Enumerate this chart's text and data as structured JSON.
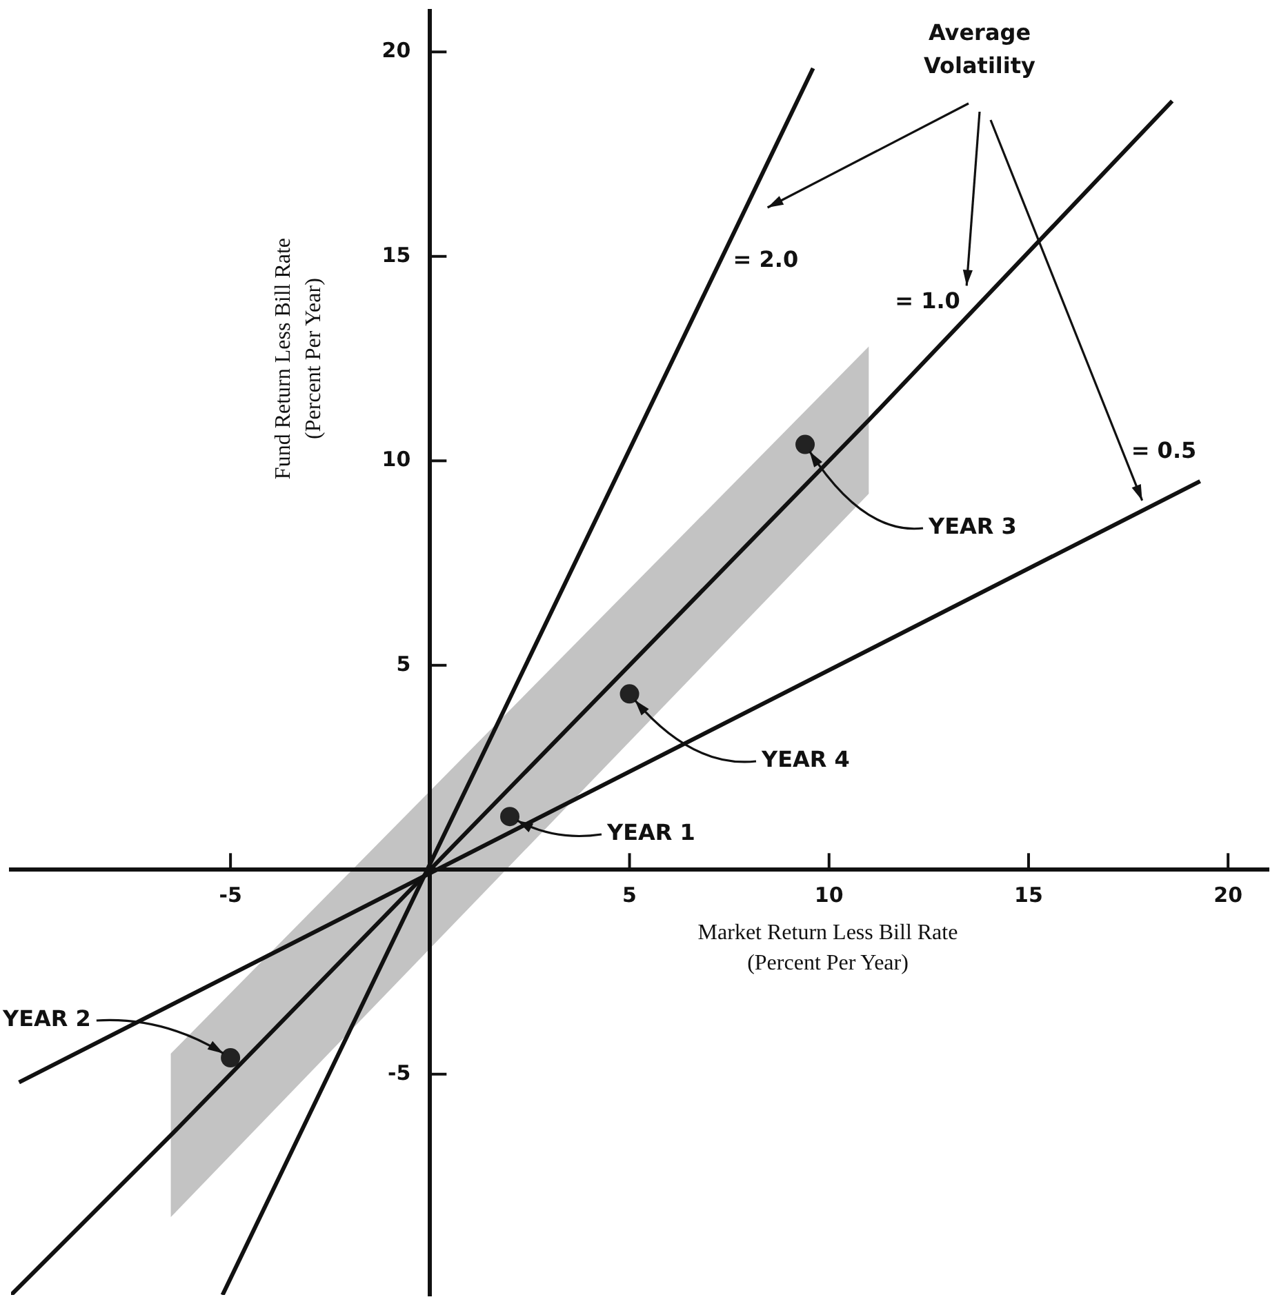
{
  "chart_data": {
    "type": "scatter",
    "xlabel": "Market Return Less Bill Rate\n(Percent Per Year)",
    "ylabel": "Fund Return Less Bill Rate\n(Percent Per Year)",
    "xlim": [
      -10.5,
      21
    ],
    "ylim": [
      -10.4,
      21
    ],
    "xticks": [
      -5,
      5,
      10,
      15,
      20
    ],
    "yticks": [
      -5,
      5,
      10,
      15,
      20
    ],
    "grid": false,
    "marker": "circle",
    "series": [
      {
        "name": "= 2.0",
        "type": "line",
        "marker": "none",
        "color": "#111111",
        "x": [
          -5.2,
          9.6
        ],
        "values": [
          -10.4,
          19.6
        ]
      },
      {
        "name": "= 1.0",
        "type": "line",
        "marker": "none",
        "color": "#111111",
        "x": [
          -10.5,
          -6.5,
          11,
          18.6
        ],
        "values": [
          -10.4,
          -6.5,
          11,
          18.8
        ],
        "lower": [
          null,
          -8.5,
          9.2,
          null
        ],
        "upper": [
          null,
          -4.5,
          12.8,
          null
        ]
      },
      {
        "name": "= 0.5",
        "type": "line",
        "marker": "none",
        "color": "#111111",
        "x": [
          -10.3,
          19.3
        ],
        "values": [
          -5.2,
          9.5
        ]
      },
      {
        "color": "#222222",
        "x": [
          2.0,
          -5.0,
          9.4,
          5.0
        ],
        "values": [
          1.3,
          -4.6,
          10.4,
          4.3
        ]
      }
    ],
    "annotations": [
      "Average\nVolatility",
      {
        "text": "YEAR 1",
        "x": 2.0,
        "y": 1.3
      },
      {
        "text": "YEAR 2",
        "x": -5.0,
        "y": -4.6
      },
      {
        "text": "YEAR 3",
        "x": 9.4,
        "y": 10.4
      },
      {
        "text": "YEAR 4",
        "x": 5.0,
        "y": 4.3
      }
    ]
  }
}
